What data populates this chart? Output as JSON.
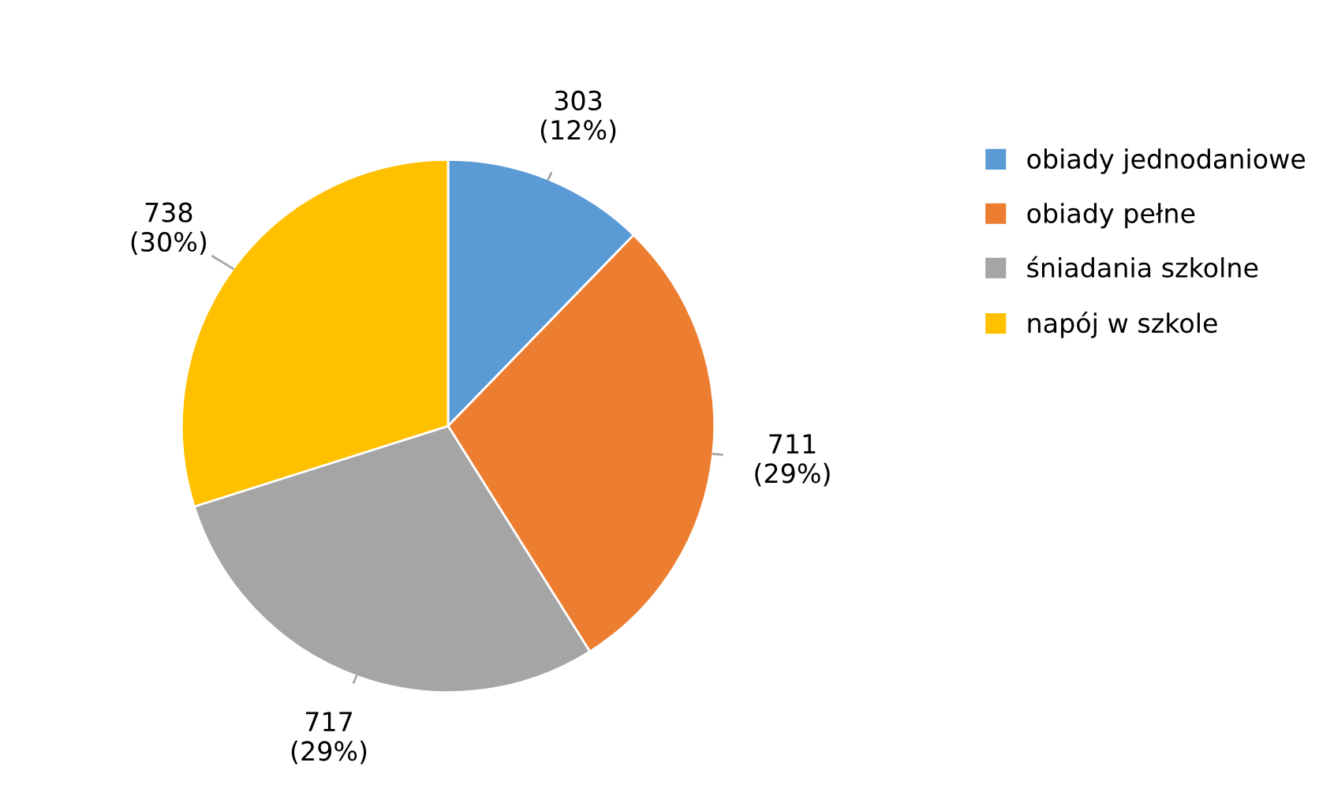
{
  "chart_data": {
    "type": "pie",
    "categories": [
      "obiady jednodaniowe",
      "obiady pełne",
      "śniadania szkolne",
      "napój w szkole"
    ],
    "values": [
      303,
      711,
      717,
      738
    ],
    "colors": [
      "#5b9bd5",
      "#ed7d31",
      "#a5a5a5",
      "#ffc000"
    ],
    "value_labels": [
      "303\n(12%)",
      "711\n(29%)",
      "717\n(29%)",
      "738\n(30%)"
    ],
    "legend": "right"
  }
}
